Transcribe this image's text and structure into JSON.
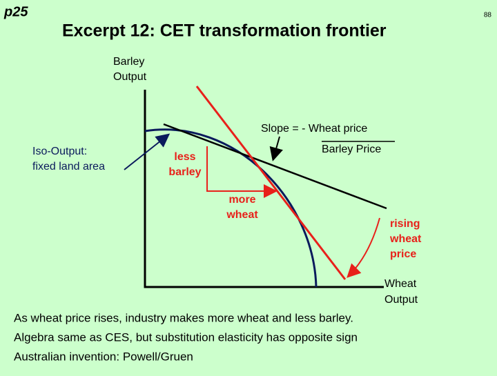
{
  "header": {
    "slide_tag": "p25",
    "page_number": "88",
    "title": "Excerpt 12: CET transformation frontier"
  },
  "diagram": {
    "y_axis_label": [
      "Barley",
      "Output"
    ],
    "x_axis_label": [
      "Wheat",
      "Output"
    ],
    "slope_label": {
      "numerator": "Slope = - Wheat price",
      "denominator": "Barley Price"
    },
    "iso_output_label": [
      "Iso-Output:",
      "fixed land area"
    ],
    "less_barley": [
      "less",
      "barley"
    ],
    "more_wheat": [
      "more",
      "wheat"
    ],
    "rising_price": [
      "rising",
      "wheat",
      "price"
    ]
  },
  "notes": [
    "As wheat price rises, industry makes more wheat and less barley.",
    "Algebra same as CES,  but substitution elasticity has opposite sign",
    "Australian invention: Powell/Gruen"
  ]
}
